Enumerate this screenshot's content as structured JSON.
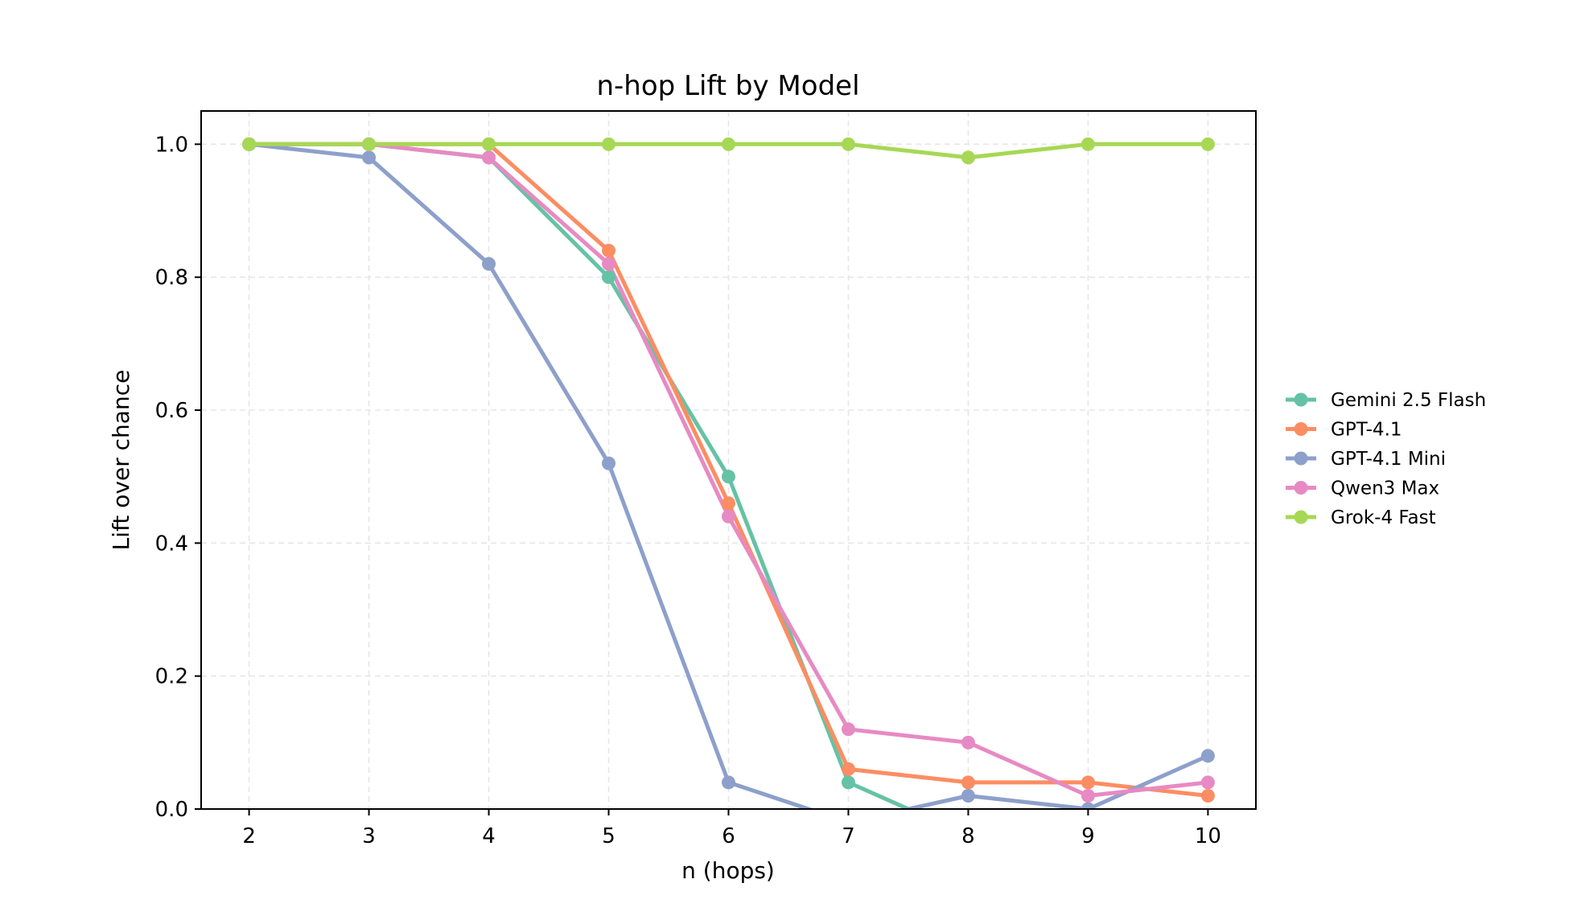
{
  "chart_data": {
    "type": "line",
    "title": "n-hop Lift by Model",
    "xlabel": "n (hops)",
    "ylabel": "Lift over chance",
    "x": [
      2,
      3,
      4,
      5,
      6,
      7,
      8,
      9,
      10
    ],
    "xticks": [
      "2",
      "3",
      "4",
      "5",
      "6",
      "7",
      "8",
      "9",
      "10"
    ],
    "xlim": [
      1.6,
      10.4
    ],
    "ylim": [
      0,
      1.05
    ],
    "yticks": [
      "0.0",
      "0.2",
      "0.4",
      "0.6",
      "0.8",
      "1.0"
    ],
    "ytick_values": [
      0,
      0.2,
      0.4,
      0.6,
      0.8,
      1.0
    ],
    "grid": true,
    "legend_position": "right, outside plot",
    "series": [
      {
        "name": "Gemini 2.5 Flash",
        "color": "#66c2a5",
        "values": [
          1.0,
          1.0,
          0.98,
          0.8,
          0.5,
          0.04,
          -0.04,
          -0.04,
          -0.01
        ]
      },
      {
        "name": "GPT-4.1",
        "color": "#fc8d62",
        "values": [
          1.0,
          1.0,
          1.0,
          0.84,
          0.46,
          0.06,
          0.04,
          0.04,
          0.02
        ]
      },
      {
        "name": "GPT-4.1 Mini",
        "color": "#8da0cb",
        "values": [
          1.0,
          0.98,
          0.82,
          0.52,
          0.04,
          -0.02,
          0.02,
          0.0,
          0.08
        ]
      },
      {
        "name": "Qwen3 Max",
        "color": "#e78ac3",
        "values": [
          1.0,
          1.0,
          0.98,
          0.82,
          0.44,
          0.12,
          0.1,
          0.02,
          0.04
        ]
      },
      {
        "name": "Grok-4 Fast",
        "color": "#a6d854",
        "values": [
          1.0,
          1.0,
          1.0,
          1.0,
          1.0,
          1.0,
          0.98,
          1.0,
          1.0
        ]
      }
    ]
  }
}
